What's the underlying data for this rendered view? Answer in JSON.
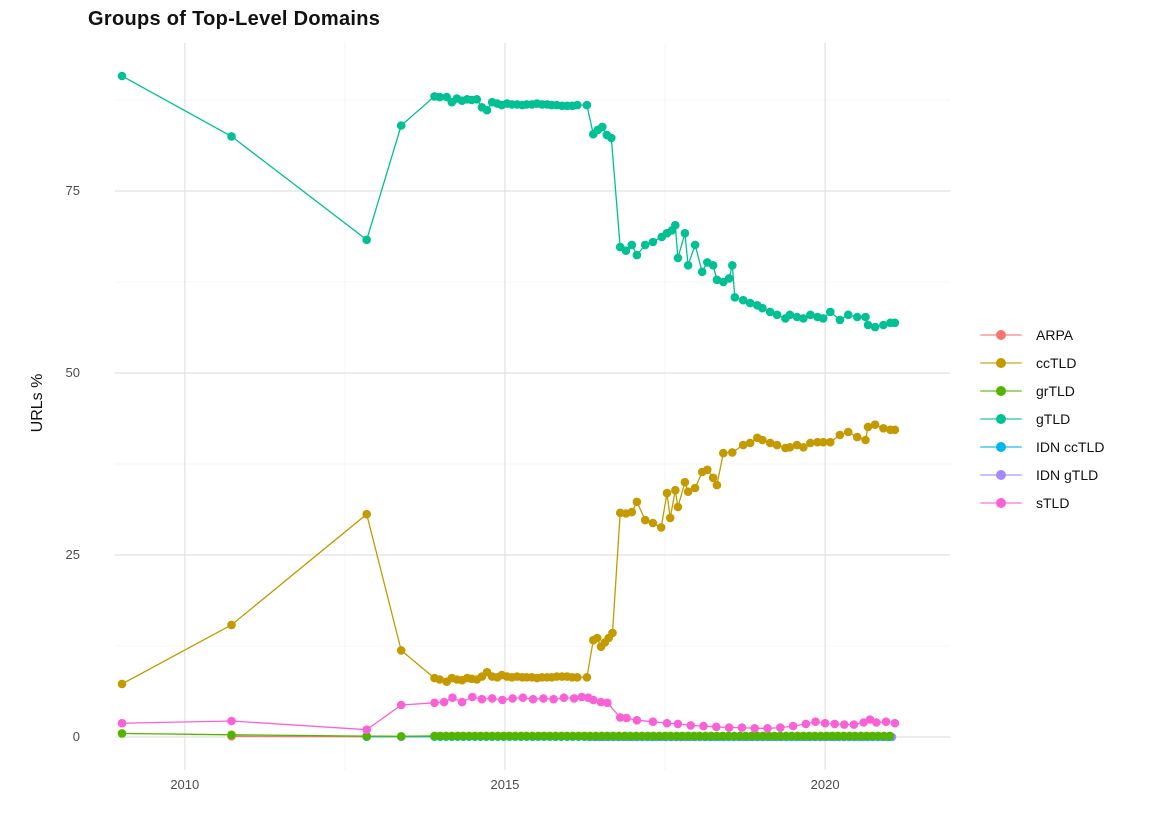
{
  "style": {
    "background": "#ffffff",
    "title_color": "#111111",
    "axis_text_color": "#4d4d4d",
    "grid_major_color": "#e2e2e2",
    "grid_minor_color": "#f0f0f0"
  },
  "chart_data": {
    "type": "line",
    "title": "Groups of Top-Level Domains",
    "xlabel": "",
    "ylabel": "URLs %",
    "legend_position": "right",
    "grid": true,
    "x_ticks": [
      2010,
      2015,
      2020
    ],
    "x_minor": [
      2012.5,
      2017.5
    ],
    "y_ticks": [
      0,
      25,
      50,
      75
    ],
    "y_minor": [
      12.5,
      37.5,
      62.5,
      87.5
    ],
    "xlim": [
      2008.91,
      2021.95
    ],
    "ylim": [
      -4.53,
      95.33
    ],
    "series": [
      {
        "name": "ARPA",
        "color": "#F8766D",
        "points": [
          [
            2010.73,
            0.1
          ],
          [
            2012.84,
            0.05
          ]
        ]
      },
      {
        "name": "ccTLD",
        "color": "#C49A00",
        "points": [
          [
            2009.02,
            7.3
          ],
          [
            2010.73,
            15.4
          ],
          [
            2012.84,
            30.6
          ],
          [
            2013.38,
            11.9
          ],
          [
            2013.9,
            8.1
          ],
          [
            2013.98,
            7.9
          ],
          [
            2014.09,
            7.6
          ],
          [
            2014.17,
            8.1
          ],
          [
            2014.25,
            7.9
          ],
          [
            2014.33,
            7.8
          ],
          [
            2014.41,
            8.1
          ],
          [
            2014.48,
            8.0
          ],
          [
            2014.56,
            7.9
          ],
          [
            2014.64,
            8.3
          ],
          [
            2014.72,
            8.9
          ],
          [
            2014.8,
            8.3
          ],
          [
            2014.88,
            8.2
          ],
          [
            2014.95,
            8.5
          ],
          [
            2015.03,
            8.3
          ],
          [
            2015.11,
            8.2
          ],
          [
            2015.19,
            8.3
          ],
          [
            2015.27,
            8.2
          ],
          [
            2015.34,
            8.2
          ],
          [
            2015.42,
            8.2
          ],
          [
            2015.5,
            8.1
          ],
          [
            2015.58,
            8.2
          ],
          [
            2015.66,
            8.2
          ],
          [
            2015.73,
            8.2
          ],
          [
            2015.81,
            8.3
          ],
          [
            2015.89,
            8.3
          ],
          [
            2015.97,
            8.3
          ],
          [
            2016.05,
            8.2
          ],
          [
            2016.13,
            8.2
          ],
          [
            2016.28,
            8.2
          ],
          [
            2016.38,
            13.3
          ],
          [
            2016.44,
            13.6
          ],
          [
            2016.5,
            12.4
          ],
          [
            2016.56,
            13.0
          ],
          [
            2016.62,
            13.6
          ],
          [
            2016.68,
            14.3
          ],
          [
            2016.8,
            30.8
          ],
          [
            2016.89,
            30.7
          ],
          [
            2016.98,
            30.9
          ],
          [
            2017.06,
            32.3
          ],
          [
            2017.19,
            29.8
          ],
          [
            2017.31,
            29.4
          ],
          [
            2017.44,
            28.8
          ],
          [
            2017.53,
            33.5
          ],
          [
            2017.58,
            30.1
          ],
          [
            2017.66,
            33.9
          ],
          [
            2017.7,
            31.6
          ],
          [
            2017.81,
            35.0
          ],
          [
            2017.86,
            33.7
          ],
          [
            2017.97,
            34.2
          ],
          [
            2018.08,
            36.4
          ],
          [
            2018.16,
            36.7
          ],
          [
            2018.25,
            35.6
          ],
          [
            2018.31,
            34.6
          ],
          [
            2018.41,
            39.0
          ],
          [
            2018.55,
            39.1
          ],
          [
            2018.72,
            40.1
          ],
          [
            2018.83,
            40.4
          ],
          [
            2018.94,
            41.1
          ],
          [
            2019.02,
            40.8
          ],
          [
            2019.14,
            40.4
          ],
          [
            2019.25,
            40.1
          ],
          [
            2019.38,
            39.7
          ],
          [
            2019.45,
            39.8
          ],
          [
            2019.56,
            40.1
          ],
          [
            2019.66,
            39.8
          ],
          [
            2019.77,
            40.4
          ],
          [
            2019.88,
            40.5
          ],
          [
            2019.97,
            40.5
          ],
          [
            2020.08,
            40.5
          ],
          [
            2020.23,
            41.5
          ],
          [
            2020.36,
            41.9
          ],
          [
            2020.5,
            41.2
          ],
          [
            2020.63,
            40.8
          ],
          [
            2020.67,
            42.6
          ],
          [
            2020.78,
            42.9
          ],
          [
            2020.91,
            42.4
          ],
          [
            2021.02,
            42.2
          ],
          [
            2021.09,
            42.2
          ]
        ]
      },
      {
        "name": "grTLD",
        "color": "#53B400",
        "points": [
          [
            2009.02,
            0.5
          ],
          [
            2010.73,
            0.3
          ],
          [
            2012.84,
            0.12
          ],
          [
            2013.38,
            0.1
          ]
        ],
        "flat": {
          "from": 2013.9,
          "to": 2021.09,
          "step": 0.09,
          "value": 0.15
        }
      },
      {
        "name": "gTLD",
        "color": "#00C094",
        "points": [
          [
            2009.02,
            90.8
          ],
          [
            2010.73,
            82.5
          ],
          [
            2012.84,
            68.3
          ],
          [
            2013.38,
            84.0
          ],
          [
            2013.9,
            88.0
          ],
          [
            2013.98,
            87.9
          ],
          [
            2014.09,
            87.9
          ],
          [
            2014.17,
            87.2
          ],
          [
            2014.25,
            87.7
          ],
          [
            2014.33,
            87.4
          ],
          [
            2014.41,
            87.6
          ],
          [
            2014.48,
            87.5
          ],
          [
            2014.56,
            87.6
          ],
          [
            2014.64,
            86.5
          ],
          [
            2014.72,
            86.1
          ],
          [
            2014.8,
            87.2
          ],
          [
            2014.88,
            87.0
          ],
          [
            2014.95,
            86.8
          ],
          [
            2015.03,
            87.0
          ],
          [
            2015.11,
            86.9
          ],
          [
            2015.19,
            86.9
          ],
          [
            2015.27,
            86.8
          ],
          [
            2015.34,
            86.9
          ],
          [
            2015.42,
            86.9
          ],
          [
            2015.5,
            87.0
          ],
          [
            2015.58,
            86.9
          ],
          [
            2015.66,
            86.9
          ],
          [
            2015.73,
            86.8
          ],
          [
            2015.81,
            86.8
          ],
          [
            2015.89,
            86.7
          ],
          [
            2015.97,
            86.7
          ],
          [
            2016.05,
            86.7
          ],
          [
            2016.13,
            86.8
          ],
          [
            2016.28,
            86.8
          ],
          [
            2016.38,
            82.8
          ],
          [
            2016.45,
            83.4
          ],
          [
            2016.52,
            83.8
          ],
          [
            2016.59,
            82.7
          ],
          [
            2016.66,
            82.3
          ],
          [
            2016.8,
            67.3
          ],
          [
            2016.89,
            66.8
          ],
          [
            2016.98,
            67.6
          ],
          [
            2017.06,
            66.2
          ],
          [
            2017.19,
            67.6
          ],
          [
            2017.31,
            68.0
          ],
          [
            2017.45,
            68.7
          ],
          [
            2017.53,
            69.2
          ],
          [
            2017.61,
            69.6
          ],
          [
            2017.66,
            70.3
          ],
          [
            2017.7,
            65.8
          ],
          [
            2017.81,
            69.2
          ],
          [
            2017.86,
            64.8
          ],
          [
            2017.97,
            67.6
          ],
          [
            2018.08,
            63.9
          ],
          [
            2018.16,
            65.2
          ],
          [
            2018.25,
            64.8
          ],
          [
            2018.31,
            62.8
          ],
          [
            2018.41,
            62.5
          ],
          [
            2018.5,
            63.0
          ],
          [
            2018.55,
            64.8
          ],
          [
            2018.59,
            60.4
          ],
          [
            2018.72,
            60.0
          ],
          [
            2018.83,
            59.6
          ],
          [
            2018.94,
            59.3
          ],
          [
            2019.02,
            58.9
          ],
          [
            2019.14,
            58.4
          ],
          [
            2019.25,
            58.0
          ],
          [
            2019.38,
            57.5
          ],
          [
            2019.45,
            58.0
          ],
          [
            2019.56,
            57.7
          ],
          [
            2019.66,
            57.5
          ],
          [
            2019.77,
            58.0
          ],
          [
            2019.88,
            57.7
          ],
          [
            2019.97,
            57.5
          ],
          [
            2020.08,
            58.4
          ],
          [
            2020.23,
            57.3
          ],
          [
            2020.36,
            58.0
          ],
          [
            2020.5,
            57.7
          ],
          [
            2020.63,
            57.7
          ],
          [
            2020.67,
            56.6
          ],
          [
            2020.78,
            56.3
          ],
          [
            2020.91,
            56.6
          ],
          [
            2021.02,
            56.9
          ],
          [
            2021.09,
            56.9
          ]
        ]
      },
      {
        "name": "IDN ccTLD",
        "color": "#00B6EB",
        "points": [
          [
            2012.84,
            0.05
          ],
          [
            2013.38,
            0.05
          ]
        ],
        "flat": {
          "from": 2013.9,
          "to": 2021.09,
          "step": 0.09,
          "value": 0.05
        }
      },
      {
        "name": "IDN gTLD",
        "color": "#A58AFF",
        "points": [],
        "flat": {
          "from": 2016.32,
          "to": 2021.09,
          "step": 0.075,
          "value": 0.0
        }
      },
      {
        "name": "sTLD",
        "color": "#FB61D7",
        "points": [
          [
            2009.02,
            1.9
          ],
          [
            2010.73,
            2.2
          ],
          [
            2012.84,
            1.0
          ],
          [
            2013.38,
            4.4
          ],
          [
            2013.9,
            4.7
          ],
          [
            2014.05,
            4.8
          ],
          [
            2014.18,
            5.4
          ],
          [
            2014.33,
            4.8
          ],
          [
            2014.49,
            5.5
          ],
          [
            2014.64,
            5.2
          ],
          [
            2014.8,
            5.3
          ],
          [
            2014.96,
            5.1
          ],
          [
            2015.12,
            5.3
          ],
          [
            2015.28,
            5.4
          ],
          [
            2015.44,
            5.2
          ],
          [
            2015.6,
            5.3
          ],
          [
            2015.76,
            5.2
          ],
          [
            2015.92,
            5.4
          ],
          [
            2016.08,
            5.3
          ],
          [
            2016.2,
            5.5
          ],
          [
            2016.3,
            5.4
          ],
          [
            2016.38,
            5.1
          ],
          [
            2016.5,
            4.8
          ],
          [
            2016.6,
            4.7
          ],
          [
            2016.8,
            2.7
          ],
          [
            2016.9,
            2.6
          ],
          [
            2017.06,
            2.3
          ],
          [
            2017.31,
            2.1
          ],
          [
            2017.53,
            1.9
          ],
          [
            2017.7,
            1.8
          ],
          [
            2017.9,
            1.6
          ],
          [
            2018.1,
            1.5
          ],
          [
            2018.3,
            1.4
          ],
          [
            2018.5,
            1.3
          ],
          [
            2018.7,
            1.3
          ],
          [
            2018.9,
            1.2
          ],
          [
            2019.1,
            1.2
          ],
          [
            2019.3,
            1.3
          ],
          [
            2019.5,
            1.5
          ],
          [
            2019.7,
            1.8
          ],
          [
            2019.85,
            2.1
          ],
          [
            2020.0,
            1.9
          ],
          [
            2020.15,
            1.8
          ],
          [
            2020.3,
            1.7
          ],
          [
            2020.45,
            1.7
          ],
          [
            2020.6,
            2.0
          ],
          [
            2020.7,
            2.4
          ],
          [
            2020.8,
            2.0
          ],
          [
            2020.95,
            2.1
          ],
          [
            2021.09,
            1.9
          ]
        ]
      }
    ]
  }
}
